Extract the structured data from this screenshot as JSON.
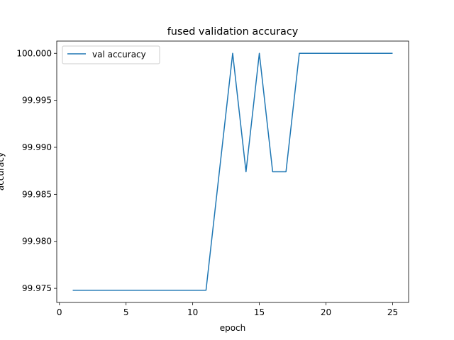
{
  "chart_data": {
    "type": "line",
    "title": "fused validation accuracy",
    "xlabel": "epoch",
    "ylabel": "accuracy",
    "xlim": [
      -0.2,
      26.2
    ],
    "ylim": [
      99.9735,
      100.0013
    ],
    "x_ticks": [
      0,
      5,
      10,
      15,
      20,
      25
    ],
    "x_tick_labels": [
      "0",
      "5",
      "10",
      "15",
      "20",
      "25"
    ],
    "y_ticks": [
      99.975,
      99.98,
      99.985,
      99.99,
      99.995,
      100.0
    ],
    "y_tick_labels": [
      "99.975",
      "99.980",
      "99.985",
      "99.990",
      "99.995",
      "100.000"
    ],
    "grid": false,
    "legend_position": "top-left",
    "colors": {
      "series": "#1f77b4"
    },
    "series": [
      {
        "name": "val accuracy",
        "x": [
          1,
          2,
          3,
          4,
          5,
          6,
          7,
          8,
          9,
          10,
          11,
          12,
          13,
          14,
          15,
          16,
          17,
          18,
          19,
          20,
          21,
          22,
          23,
          24,
          25
        ],
        "values": [
          99.9748,
          99.9748,
          99.9748,
          99.9748,
          99.9748,
          99.9748,
          99.9748,
          99.9748,
          99.9748,
          99.9748,
          99.9748,
          99.9874,
          100.0,
          99.9874,
          100.0,
          99.9874,
          99.9874,
          100.0,
          100.0,
          100.0,
          100.0,
          100.0,
          100.0,
          100.0,
          100.0
        ]
      }
    ]
  }
}
